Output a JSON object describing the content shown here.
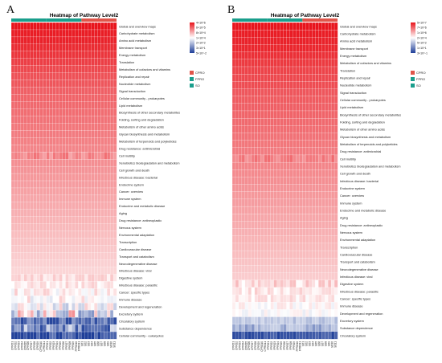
{
  "colors": {
    "high": "#e8141c",
    "mid": "#ffffff",
    "low": "#1f3f99",
    "group_cpro": "#e0554a",
    "group_fpro": "#1a9e8c",
    "group_so": "#1a9e8c"
  },
  "chart_data": [
    {
      "type": "heatmap",
      "panel_label": "A",
      "title": "Heatmap of Pathway Level2",
      "color_scale_labels": [
        "4×10^6",
        "6×10^5",
        "8×10^4",
        "1×10^4",
        "2×10^2",
        "3×10^1",
        "5×10^-2"
      ],
      "legend": [
        "CPRO",
        "FPRO",
        "SO"
      ],
      "group_sizes": [
        11,
        11,
        11
      ],
      "rows": [
        "Global and overview maps",
        "Carbohydrate metabolism",
        "Amino acid metabolism",
        "Membrane transport",
        "Energy metabolism",
        "Translation",
        "Metabolism of cofactors and vitamins",
        "Replication and repair",
        "Nucleotide metabolism",
        "Signal transduction",
        "Cellular community - prokaryotes",
        "Lipid metabolism",
        "Biosynthesis of other secondary metabolites",
        "Folding, sorting and degradation",
        "Metabolism of other amino acids",
        "Glycan biosynthesis and metabolism",
        "Metabolism of terpenoids and polyketides",
        "Drug resistance: antimicrobial",
        "Cell motility",
        "Xenobiotics biodegradation and metabolism",
        "Cell growth and death",
        "Infectious disease: bacterial",
        "Endocrine system",
        "Cancer: overview",
        "Immune system",
        "Endocrine and metabolic disease",
        "Aging",
        "Drug resistance: antineoplastic",
        "Nervous system",
        "Environmental adaptation",
        "Transcription",
        "Cardiovascular disease",
        "Transport and catabolism",
        "Neurodegenerative disease",
        "Infectious disease: viral",
        "Digestive system",
        "Infectious disease: parasitic",
        "Cancer: specific types",
        "Immune disease",
        "Development and regeneration",
        "Excretory system",
        "Circulatory system",
        "Substance dependence",
        "Cellular community - eukaryotes"
      ],
      "columns": [
        "CPRO1",
        "CPRO2",
        "CPRO3",
        "CPRO4",
        "CPRO5",
        "CPRO6",
        "CPRO7",
        "CPRO8",
        "CPRO9",
        "CPRO10",
        "CPRO11",
        "FPRO1",
        "FPRO2",
        "FPRO3",
        "FPRO4",
        "FPRO5",
        "FPRO6",
        "FPRO7",
        "FPRO8",
        "FPRO9",
        "FPRO10",
        "FPRO11",
        "SO1",
        "SO2",
        "SO3",
        "SO4",
        "SO5",
        "SO6",
        "SO7",
        "SO8",
        "SO9",
        "SO10",
        "SO11"
      ],
      "row_levels": [
        1.0,
        0.98,
        0.97,
        0.95,
        0.93,
        0.91,
        0.89,
        0.87,
        0.86,
        0.84,
        0.83,
        0.82,
        0.81,
        0.8,
        0.79,
        0.78,
        0.77,
        0.76,
        0.75,
        0.74,
        0.73,
        0.72,
        0.71,
        0.7,
        0.69,
        0.68,
        0.67,
        0.66,
        0.65,
        0.64,
        0.63,
        0.62,
        0.61,
        0.6,
        0.59,
        0.57,
        0.55,
        0.53,
        0.51,
        0.48,
        0.44,
        0.12,
        0.22,
        0.05
      ],
      "row_variation": [
        0,
        0,
        0,
        0,
        0,
        0,
        0,
        0,
        0,
        0,
        0,
        0,
        0,
        0,
        0,
        0,
        0,
        0,
        0.06,
        0,
        0,
        0,
        0,
        0,
        0,
        0,
        0,
        0,
        0,
        0,
        0,
        0,
        0,
        0,
        0,
        0.05,
        0.06,
        0.08,
        0.1,
        0.14,
        0.3,
        0.12,
        0.2,
        0.1
      ]
    },
    {
      "type": "heatmap",
      "panel_label": "B",
      "title": "Heatmap of Pathway Level2",
      "color_scale_labels": [
        "5×10^7",
        "7×10^6",
        "1×10^6",
        "2×10^4",
        "5×10^2",
        "1×10^1",
        "3×10^-1"
      ],
      "legend": [
        "CPRO",
        "FPRO",
        "SO"
      ],
      "group_sizes": [
        11,
        11,
        11
      ],
      "rows": [
        "Global and overview maps",
        "Carbohydrate metabolism",
        "Amino acid metabolism",
        "Membrane transport",
        "Energy metabolism",
        "Metabolism of cofactors and vitamins",
        "Translation",
        "Replication and repair",
        "Nucleotide metabolism",
        "Signal transduction",
        "Cellular community - prokaryotes",
        "Lipid metabolism",
        "Biosynthesis of other secondary metabolites",
        "Folding, sorting and degradation",
        "Metabolism of other amino acids",
        "Glycan biosynthesis and metabolism",
        "Metabolism of terpenoids and polyketides",
        "Drug resistance: antimicrobial",
        "Cell motility",
        "Xenobiotics biodegradation and metabolism",
        "Cell growth and death",
        "Infectious disease: bacterial",
        "Endocrine system",
        "Cancer: overview",
        "Immune system",
        "Endocrine and metabolic disease",
        "Aging",
        "Drug resistance: antineoplastic",
        "Nervous system",
        "Environmental adaptation",
        "Transcription",
        "Cardiovascular disease",
        "Transport and catabolism",
        "Neurodegenerative disease",
        "Infectious disease: viral",
        "Digestive system",
        "Infectious disease: parasitic",
        "Cancer: specific types",
        "Immune disease",
        "Development and regeneration",
        "Excretory system",
        "Substance dependence",
        "Circulatory system"
      ],
      "columns": [
        "CPRO1",
        "CPRO2",
        "CPRO3",
        "CPRO4",
        "CPRO5",
        "CPRO6",
        "CPRO7",
        "CPRO8",
        "CPRO9",
        "CPRO10",
        "CPRO11",
        "FPRO1",
        "FPRO2",
        "FPRO3",
        "FPRO4",
        "FPRO5",
        "FPRO6",
        "FPRO7",
        "FPRO8",
        "FPRO9",
        "FPRO10",
        "FPRO11",
        "SO1",
        "SO2",
        "SO3",
        "SO4",
        "SO5",
        "SO6",
        "SO7",
        "SO8",
        "SO9",
        "SO10",
        "SO11"
      ],
      "row_levels": [
        1.0,
        0.98,
        0.97,
        0.96,
        0.94,
        0.92,
        0.9,
        0.89,
        0.88,
        0.86,
        0.85,
        0.84,
        0.83,
        0.82,
        0.81,
        0.8,
        0.79,
        0.78,
        0.77,
        0.76,
        0.75,
        0.74,
        0.73,
        0.72,
        0.71,
        0.7,
        0.69,
        0.68,
        0.67,
        0.66,
        0.65,
        0.64,
        0.63,
        0.62,
        0.61,
        0.58,
        0.56,
        0.54,
        0.52,
        0.49,
        0.36,
        0.3,
        0.06
      ],
      "row_variation": [
        0,
        0,
        0,
        0,
        0,
        0,
        0,
        0,
        0,
        0,
        0,
        0,
        0,
        0,
        0,
        0,
        0,
        0,
        0.05,
        0,
        0,
        0,
        0,
        0,
        0,
        0,
        0,
        0,
        0,
        0,
        0,
        0,
        0,
        0,
        0,
        0.08,
        0.06,
        0.06,
        0.06,
        0.05,
        0.05,
        0.08,
        0.06
      ]
    }
  ]
}
